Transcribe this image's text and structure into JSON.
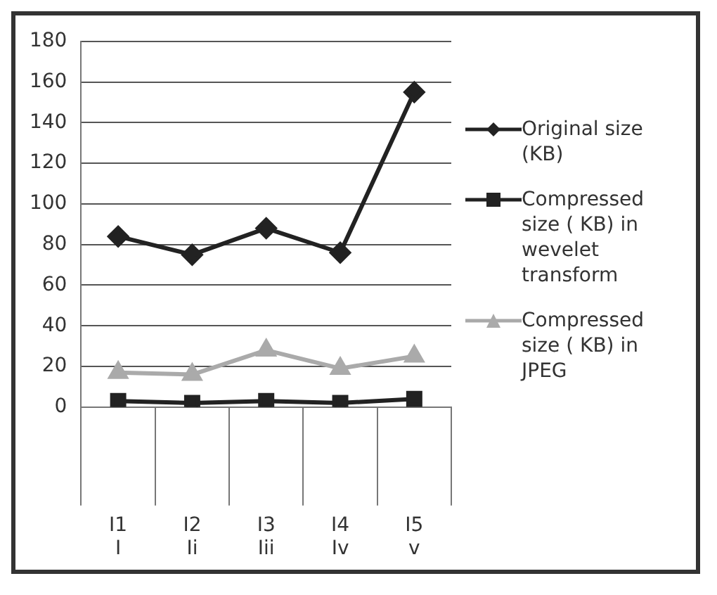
{
  "chart_data": {
    "type": "line",
    "categories": [
      "I1\nI",
      "I2\nIi",
      "I3\nIii",
      "I4\nIv",
      "I5\nv"
    ],
    "ylim": [
      0,
      180
    ],
    "yticks": [
      0,
      20,
      40,
      60,
      80,
      100,
      120,
      140,
      160,
      180
    ],
    "grid": "y",
    "legend": "right",
    "series": [
      {
        "name": "Original size (KB)",
        "color": "#222222",
        "marker": "diamond",
        "values": [
          84,
          75,
          88,
          76,
          155
        ]
      },
      {
        "name": "Compressed size ( KB) in wevelet transform",
        "color": "#222222",
        "marker": "square",
        "values": [
          3,
          2,
          3,
          2,
          4
        ]
      },
      {
        "name": "Compressed size ( KB) in JPEG",
        "color": "#aaaaaa",
        "marker": "triangle",
        "values": [
          17,
          16,
          28,
          19,
          25
        ]
      }
    ]
  }
}
